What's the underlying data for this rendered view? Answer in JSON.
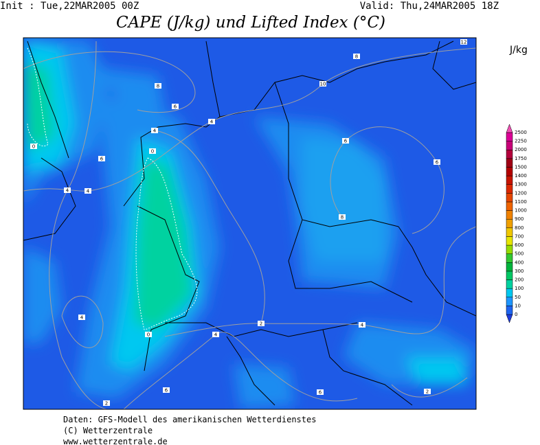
{
  "header": {
    "init": "Init : Tue,22MAR2005 00Z",
    "valid": "Valid: Thu,24MAR2005 18Z",
    "title": "CAPE (J/kg) und Lifted Index (°C)"
  },
  "colorbar": {
    "unit": "J/kg",
    "labels": [
      0,
      10,
      50,
      100,
      200,
      300,
      400,
      500,
      600,
      700,
      800,
      900,
      1000,
      1100,
      1200,
      1300,
      1400,
      1500,
      1750,
      2000,
      2250,
      2500
    ],
    "colors": [
      "#1e3cdc",
      "#1e64f0",
      "#1e96ff",
      "#00c8f0",
      "#00d2a0",
      "#00c864",
      "#00b43c",
      "#32c832",
      "#96dc00",
      "#e6e600",
      "#f0c800",
      "#f0a000",
      "#f08200",
      "#f06400",
      "#e64600",
      "#dc2800",
      "#c81400",
      "#b40000",
      "#a00014",
      "#b4003c",
      "#c80078",
      "#dc0096",
      "#f050b4"
    ]
  },
  "map": {
    "contour_labels": [
      12,
      8,
      10,
      8,
      6,
      4,
      4,
      6,
      6,
      6,
      0,
      4,
      4,
      8,
      0,
      4,
      2,
      4,
      0,
      4,
      6,
      6,
      2,
      2
    ]
  },
  "footer": [
    "Daten: GFS-Modell des amerikanischen Wetterdienstes",
    "(C) Wetterzentrale",
    "www.wetterzentrale.de"
  ]
}
